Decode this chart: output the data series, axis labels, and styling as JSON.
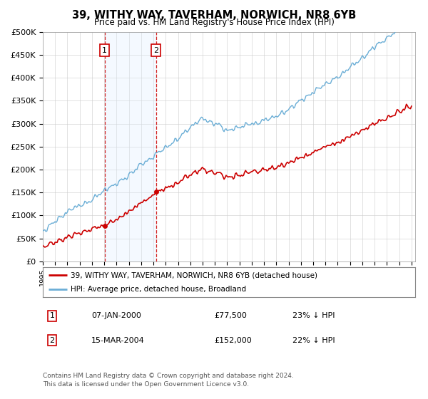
{
  "title": "39, WITHY WAY, TAVERHAM, NORWICH, NR8 6YB",
  "subtitle": "Price paid vs. HM Land Registry's House Price Index (HPI)",
  "ylim": [
    0,
    500000
  ],
  "yticks": [
    0,
    50000,
    100000,
    150000,
    200000,
    250000,
    300000,
    350000,
    400000,
    450000,
    500000
  ],
  "ytick_labels": [
    "£0",
    "£50K",
    "£100K",
    "£150K",
    "£200K",
    "£250K",
    "£300K",
    "£350K",
    "£400K",
    "£450K",
    "£500K"
  ],
  "sale1_date_num": 2000.03,
  "sale1_price": 77500,
  "sale1_label": "1",
  "sale1_date_str": "07-JAN-2000",
  "sale1_price_str": "£77,500",
  "sale1_hpi_str": "23% ↓ HPI",
  "sale2_date_num": 2004.21,
  "sale2_price": 152000,
  "sale2_label": "2",
  "sale2_date_str": "15-MAR-2004",
  "sale2_price_str": "£152,000",
  "sale2_hpi_str": "22% ↓ HPI",
  "hpi_color": "#6baed6",
  "price_color": "#cc0000",
  "sale_marker_color": "#cc0000",
  "vline_color": "#cc0000",
  "shade_color": "#ddeeff",
  "legend1_text": "39, WITHY WAY, TAVERHAM, NORWICH, NR8 6YB (detached house)",
  "legend2_text": "HPI: Average price, detached house, Broadland",
  "footer1": "Contains HM Land Registry data © Crown copyright and database right 2024.",
  "footer2": "This data is licensed under the Open Government Licence v3.0.",
  "background_color": "#ffffff",
  "grid_color": "#cccccc"
}
